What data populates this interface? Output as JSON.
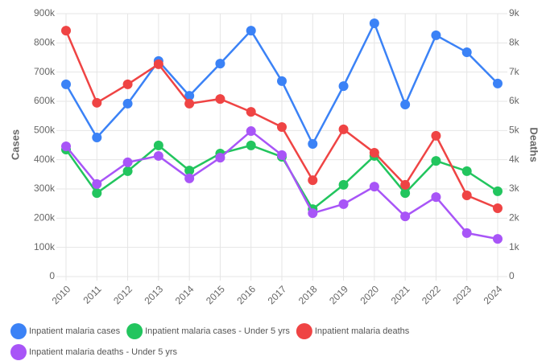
{
  "chart_data": {
    "type": "line",
    "y_label": "Cases",
    "y2_label": "Deaths",
    "categories": [
      "2010",
      "2011",
      "2012",
      "2013",
      "2014",
      "2015",
      "2016",
      "2017",
      "2018",
      "2019",
      "2020",
      "2021",
      "2022",
      "2023",
      "2024"
    ],
    "ylim": [
      0,
      900000
    ],
    "yticks": [
      0,
      {
        "value": 100000,
        "label": "100k"
      },
      {
        "value": 200000,
        "label": "200k"
      },
      {
        "value": 300000,
        "label": "300k"
      },
      {
        "value": 400000,
        "label": "400k"
      },
      {
        "value": 500000,
        "label": "500k"
      },
      {
        "value": 600000,
        "label": "600k"
      },
      {
        "value": 700000,
        "label": "700k"
      },
      {
        "value": 800000,
        "label": "800k"
      },
      {
        "value": 900000,
        "label": "900k"
      }
    ],
    "y2lim": [
      0,
      9000
    ],
    "y2ticks": [
      0,
      {
        "value": 1000,
        "label": "1k"
      },
      {
        "value": 2000,
        "label": "2k"
      },
      {
        "value": 3000,
        "label": "3k"
      },
      {
        "value": 4000,
        "label": "4k"
      },
      {
        "value": 5000,
        "label": "5k"
      },
      {
        "value": 6000,
        "label": "6k"
      },
      {
        "value": 7000,
        "label": "7k"
      },
      {
        "value": 8000,
        "label": "8k"
      },
      {
        "value": 9000,
        "label": "9k"
      }
    ],
    "grid": true,
    "legend": "bottom",
    "series": [
      {
        "name": "Inpatient malaria cases",
        "color": "#3b82f6",
        "values": [
          658000,
          476000,
          592000,
          738000,
          619000,
          729000,
          842000,
          669000,
          454000,
          652000,
          867000,
          589000,
          826000,
          768000,
          661000
        ]
      },
      {
        "name": "Inpatient malaria cases - Under 5 yrs",
        "color": "#22c55e",
        "values": [
          435000,
          286000,
          361000,
          449000,
          363000,
          421000,
          449000,
          410000,
          231000,
          314000,
          413000,
          286000,
          396000,
          361000,
          292000
        ]
      },
      {
        "name": "Inpatient malaria deaths",
        "color": "#ef4444",
        "axis": "y2",
        "values": [
          8420,
          5950,
          6580,
          7270,
          5920,
          6080,
          5640,
          5120,
          3300,
          5040,
          4240,
          3140,
          4820,
          2780,
          2340
        ]
      },
      {
        "name": "Inpatient malaria deaths - Under 5 yrs",
        "color": "#a855f7",
        "axis": "y2",
        "values": [
          4460,
          3170,
          3910,
          4130,
          3360,
          4070,
          4980,
          4160,
          2170,
          2480,
          3080,
          2060,
          2720,
          1490,
          1290
        ]
      }
    ]
  }
}
